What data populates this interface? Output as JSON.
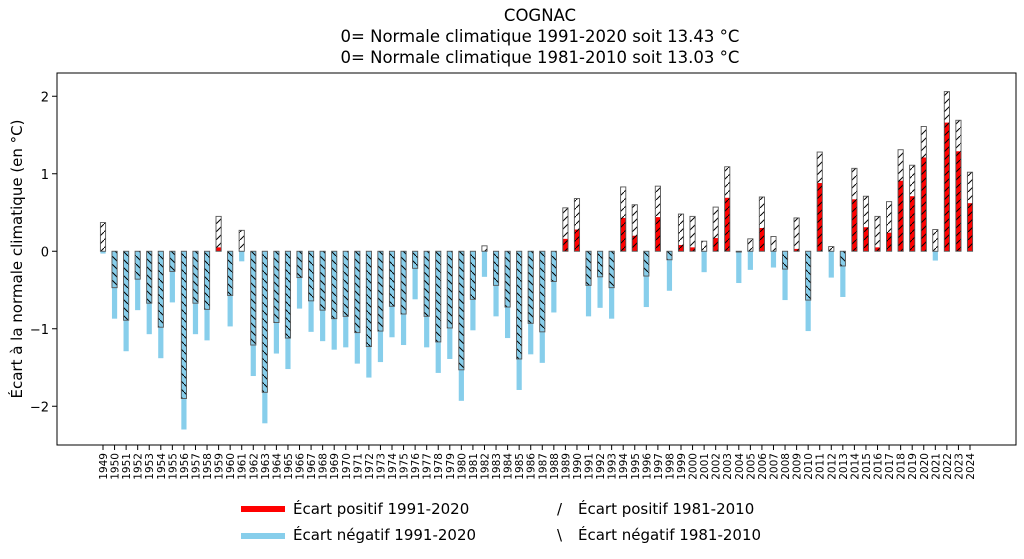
{
  "chart_data": {
    "type": "bar",
    "title": "COGNAC",
    "subtitles": [
      "0= Normale climatique 1991-2020 soit 13.43 °C",
      "0= Normale climatique 1981-2010 soit 13.03 °C"
    ],
    "ylabel": "Écart à la normale climatique (en °C)",
    "xlabel": "",
    "ylim": [
      -2.5,
      2.3
    ],
    "yticks": [
      -2,
      -1,
      0,
      1,
      2
    ],
    "ytick_labels": [
      "−2",
      "−1",
      "0",
      "1",
      "2"
    ],
    "grid": false,
    "normals": {
      "n1991_2020": 13.43,
      "n1981_2010": 13.03
    },
    "categories": [
      "1949",
      "1950",
      "1951",
      "1952",
      "1953",
      "1954",
      "1955",
      "1956",
      "1957",
      "1958",
      "1959",
      "1960",
      "1961",
      "1962",
      "1963",
      "1964",
      "1965",
      "1966",
      "1967",
      "1968",
      "1969",
      "1970",
      "1971",
      "1972",
      "1973",
      "1974",
      "1975",
      "1976",
      "1977",
      "1978",
      "1979",
      "1980",
      "1981",
      "1982",
      "1983",
      "1984",
      "1985",
      "1986",
      "1987",
      "1988",
      "1989",
      "1990",
      "1991",
      "1992",
      "1993",
      "1994",
      "1995",
      "1996",
      "1997",
      "1998",
      "1999",
      "2000",
      "2001",
      "2002",
      "2003",
      "2004",
      "2005",
      "2006",
      "2007",
      "2008",
      "2009",
      "2010",
      "2011",
      "2012",
      "2013",
      "2014",
      "2015",
      "2016",
      "2017",
      "2018",
      "2019",
      "2020",
      "2021",
      "2022",
      "2023",
      "2024"
    ],
    "series": [
      {
        "name": "Écart 1991-2020",
        "values": [
          -0.03,
          -0.87,
          -1.29,
          -0.76,
          -1.07,
          -1.38,
          -0.66,
          -2.3,
          -1.07,
          -1.15,
          0.05,
          -0.97,
          -0.13,
          -1.61,
          -2.22,
          -1.32,
          -1.52,
          -0.74,
          -1.04,
          -1.16,
          -1.27,
          -1.24,
          -1.45,
          -1.63,
          -1.43,
          -1.11,
          -1.21,
          -0.62,
          -1.24,
          -1.57,
          -1.39,
          -1.93,
          -1.02,
          -0.33,
          -0.84,
          -1.12,
          -1.79,
          -1.33,
          -1.44,
          -0.79,
          0.16,
          0.28,
          -0.84,
          -0.73,
          -0.87,
          0.43,
          0.2,
          -0.72,
          0.44,
          -0.51,
          0.08,
          0.05,
          -0.27,
          0.17,
          0.69,
          -0.41,
          -0.24,
          0.3,
          -0.21,
          -0.63,
          0.03,
          -1.03,
          0.88,
          -0.34,
          -0.59,
          0.67,
          0.31,
          0.05,
          0.24,
          0.91,
          0.71,
          1.21,
          -0.12,
          1.66,
          1.29,
          0.62
        ]
      },
      {
        "name": "Écart 1981-2010",
        "values": [
          0.37,
          -0.47,
          -0.89,
          -0.36,
          -0.67,
          -0.98,
          -0.26,
          -1.9,
          -0.67,
          -0.75,
          0.45,
          -0.57,
          0.27,
          -1.21,
          -1.82,
          -0.92,
          -1.12,
          -0.34,
          -0.64,
          -0.76,
          -0.87,
          -0.84,
          -1.05,
          -1.23,
          -1.03,
          -0.71,
          -0.81,
          -0.22,
          -0.84,
          -1.17,
          -0.99,
          -1.53,
          -0.62,
          0.07,
          -0.44,
          -0.72,
          -1.39,
          -0.93,
          -1.04,
          -0.39,
          0.56,
          0.68,
          -0.44,
          -0.33,
          -0.47,
          0.83,
          0.6,
          -0.32,
          0.84,
          -0.11,
          0.48,
          0.45,
          0.13,
          0.57,
          1.09,
          -0.01,
          0.16,
          0.7,
          0.19,
          -0.23,
          0.43,
          -0.63,
          1.28,
          0.06,
          -0.19,
          1.07,
          0.71,
          0.45,
          0.64,
          1.31,
          1.11,
          1.61,
          0.28,
          2.06,
          1.69,
          1.02
        ]
      }
    ],
    "colors": {
      "positive_1991": "#ff0000",
      "negative_1991": "#87ceeb",
      "hatch_edge": "#000000"
    },
    "legend": {
      "placement": "bottom-center",
      "items": [
        {
          "label": "Écart positif 1991-2020",
          "symbol": "red-line"
        },
        {
          "label": "Écart négatif 1991-2020",
          "symbol": "blue-line"
        },
        {
          "label": "Écart positif 1981-2010",
          "symbol": "/"
        },
        {
          "label": "Écart négatif 1981-2010",
          "symbol": "\\"
        }
      ]
    }
  }
}
